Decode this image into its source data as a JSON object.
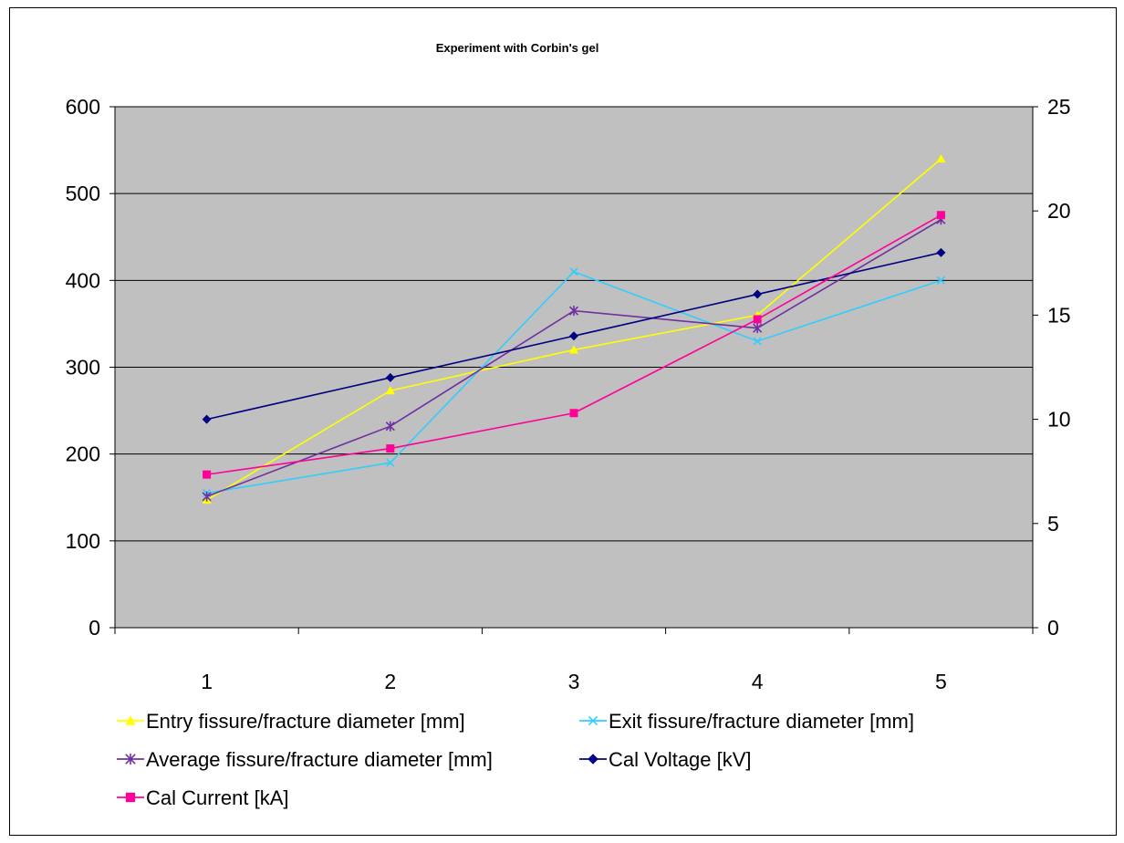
{
  "chart_data": {
    "type": "line",
    "title": "Experiment with Corbin's gel",
    "categories": [
      "1",
      "2",
      "3",
      "4",
      "5"
    ],
    "y_left": {
      "min": 0,
      "max": 600,
      "ticks": [
        "0",
        "100",
        "200",
        "300",
        "400",
        "500",
        "600"
      ]
    },
    "y_right": {
      "min": 0,
      "max": 25,
      "ticks": [
        "0",
        "5",
        "10",
        "15",
        "20",
        "25"
      ]
    },
    "grid": true,
    "plot_background": "#c0c0c0",
    "legend_position": "bottom",
    "series": [
      {
        "name": "Entry fissure/fracture diameter [mm]",
        "axis": "left",
        "color": "#ffff00",
        "marker": "triangle",
        "values": [
          147,
          273,
          320,
          360,
          540
        ]
      },
      {
        "name": "Exit fissure/fracture diameter [mm]",
        "axis": "left",
        "color": "#33ccff",
        "marker": "x",
        "values": [
          155,
          190,
          410,
          330,
          400
        ]
      },
      {
        "name": "Average fissure/fracture diameter [mm]",
        "axis": "left",
        "color": "#7030a0",
        "marker": "star",
        "values": [
          151,
          232,
          365,
          345,
          470
        ]
      },
      {
        "name": "Cal Voltage [kV]",
        "axis": "right",
        "color": "#000080",
        "marker": "diamond",
        "values": [
          10,
          12,
          14,
          16,
          18
        ]
      },
      {
        "name": "Cal Current [kA]",
        "axis": "right",
        "color": "#ff0099",
        "marker": "square",
        "values": [
          7.35,
          8.6,
          10.3,
          14.8,
          19.8
        ]
      }
    ]
  }
}
